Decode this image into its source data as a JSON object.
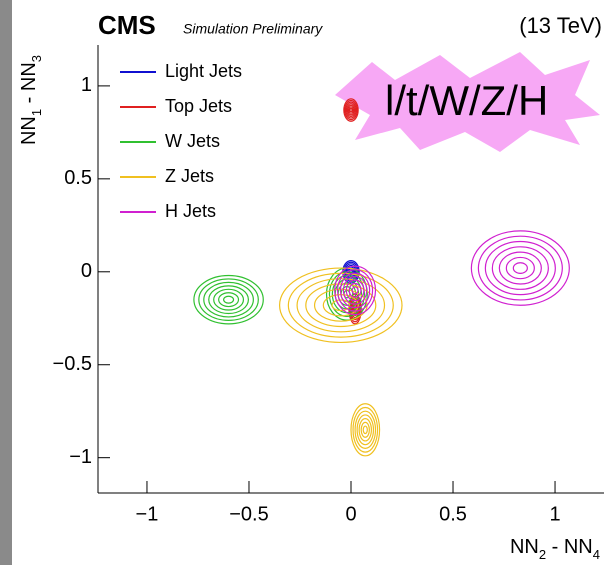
{
  "chart_data": {
    "type": "contour",
    "title": "CMS",
    "subtitle": "Simulation Preliminary",
    "energy": "(13 TeV)",
    "annotation": "l/t/W/Z/H",
    "xlabel": [
      "NN",
      "2",
      " - NN",
      "4"
    ],
    "ylabel": [
      "NN",
      "1",
      " - NN",
      "3"
    ],
    "xlim": [
      -1.24,
      1.24
    ],
    "ylim": [
      -1.19,
      1.22
    ],
    "xticks": [
      {
        "value": -1,
        "label": "−1"
      },
      {
        "value": -0.5,
        "label": "−0.5"
      },
      0,
      0.5,
      1
    ],
    "yticks": [
      {
        "value": -1,
        "label": "−1"
      },
      {
        "value": -0.5,
        "label": "−0.5"
      },
      0,
      0.5,
      1
    ],
    "series": [
      {
        "name": "Light Jets",
        "color": "#1010d0",
        "x": [
          0
        ],
        "y": [
          0
        ]
      },
      {
        "name": "Top Jets",
        "color": "#e02020",
        "x": [
          0,
          0.02
        ],
        "y": [
          0.87,
          -0.2
        ]
      },
      {
        "name": "W Jets",
        "color": "#30c030",
        "x": [
          -0.6,
          -0.02
        ],
        "y": [
          -0.15,
          -0.12
        ]
      },
      {
        "name": "Z Jets",
        "color": "#f0c020",
        "x": [
          0.07,
          -0.05
        ],
        "y": [
          -0.85,
          -0.18
        ]
      },
      {
        "name": "H Jets",
        "color": "#d020d0",
        "x": [
          0.83,
          0.02
        ],
        "y": [
          0.02,
          -0.1
        ]
      }
    ]
  }
}
